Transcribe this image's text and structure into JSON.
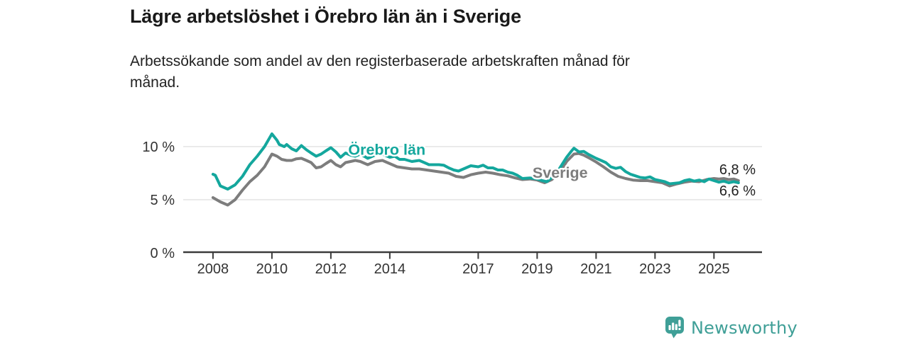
{
  "header": {
    "title": "Lägre arbetslöshet i Örebro län än i Sverige",
    "subtitle": "Arbetssökande som andel av den registerbaserade arbetskraften månad för\nmånad."
  },
  "footer": {
    "brand": "Newsworthy",
    "logo_icon": "bar-chart-speech-bubble"
  },
  "colors": {
    "orebro": "#14a79d",
    "sverige": "#7d7d7d",
    "grid": "#e0e0e0",
    "axis": "#3b3b3b",
    "tick_text": "#333333",
    "annotation_text": "#222222",
    "logo": "#3f9f97",
    "title_text": "#191919"
  },
  "chart_data": {
    "type": "line",
    "title": "Lägre arbetslöshet i Örebro län än i Sverige",
    "subtitle": "Arbetssökande som andel av den registerbaserade arbetskraften månad för månad.",
    "x_unit": "year_decimal",
    "y_unit": "percent",
    "xlim": [
      2006.99,
      2026.63
    ],
    "ylim": [
      0,
      12.13
    ],
    "grid": true,
    "legend_position": "inline-labels",
    "y_ticks": [
      {
        "value": 0,
        "label": "0 %"
      },
      {
        "value": 5,
        "label": "5 %"
      },
      {
        "value": 10,
        "label": "10 %"
      }
    ],
    "x_ticks": [
      {
        "value": 2008,
        "label": "2008"
      },
      {
        "value": 2010,
        "label": "2010"
      },
      {
        "value": 2012,
        "label": "2012"
      },
      {
        "value": 2014,
        "label": "2014"
      },
      {
        "value": 2017,
        "label": "2017"
      },
      {
        "value": 2019,
        "label": "2019"
      },
      {
        "value": 2021,
        "label": "2021"
      },
      {
        "value": 2023,
        "label": "2023"
      },
      {
        "value": 2025,
        "label": "2025"
      }
    ],
    "series": [
      {
        "name": "Sverige",
        "color": "#7d7d7d",
        "label": {
          "text": "Sverige",
          "x": 2019.78,
          "y": 7.6
        },
        "end_label": {
          "text": "6,8 %",
          "x": 2025.18,
          "y": 7.87
        },
        "points": [
          [
            2008.0,
            5.2
          ],
          [
            2008.25,
            4.8
          ],
          [
            2008.5,
            4.5
          ],
          [
            2008.75,
            5.0
          ],
          [
            2009.0,
            5.9
          ],
          [
            2009.25,
            6.7
          ],
          [
            2009.5,
            7.3
          ],
          [
            2009.75,
            8.1
          ],
          [
            2010.0,
            9.3
          ],
          [
            2010.17,
            9.1
          ],
          [
            2010.33,
            8.8
          ],
          [
            2010.5,
            8.7
          ],
          [
            2010.67,
            8.7
          ],
          [
            2010.83,
            8.85
          ],
          [
            2011.0,
            8.9
          ],
          [
            2011.17,
            8.7
          ],
          [
            2011.33,
            8.5
          ],
          [
            2011.5,
            8.0
          ],
          [
            2011.67,
            8.1
          ],
          [
            2011.83,
            8.4
          ],
          [
            2012.0,
            8.7
          ],
          [
            2012.17,
            8.3
          ],
          [
            2012.33,
            8.1
          ],
          [
            2012.5,
            8.5
          ],
          [
            2012.67,
            8.6
          ],
          [
            2012.83,
            8.7
          ],
          [
            2013.0,
            8.6
          ],
          [
            2013.25,
            8.3
          ],
          [
            2013.5,
            8.6
          ],
          [
            2013.75,
            8.7
          ],
          [
            2014.0,
            8.4
          ],
          [
            2014.25,
            8.1
          ],
          [
            2014.5,
            8.0
          ],
          [
            2014.75,
            7.9
          ],
          [
            2015.0,
            7.9
          ],
          [
            2015.25,
            7.8
          ],
          [
            2015.5,
            7.7
          ],
          [
            2015.75,
            7.6
          ],
          [
            2016.0,
            7.5
          ],
          [
            2016.25,
            7.2
          ],
          [
            2016.5,
            7.1
          ],
          [
            2016.75,
            7.35
          ],
          [
            2017.0,
            7.5
          ],
          [
            2017.25,
            7.6
          ],
          [
            2017.5,
            7.5
          ],
          [
            2017.75,
            7.35
          ],
          [
            2018.0,
            7.25
          ],
          [
            2018.25,
            7.05
          ],
          [
            2018.5,
            6.9
          ],
          [
            2018.75,
            6.95
          ],
          [
            2019.0,
            6.85
          ],
          [
            2019.25,
            6.6
          ],
          [
            2019.5,
            6.9
          ],
          [
            2019.75,
            7.5
          ],
          [
            2020.0,
            8.6
          ],
          [
            2020.25,
            9.3
          ],
          [
            2020.42,
            9.35
          ],
          [
            2020.58,
            9.2
          ],
          [
            2020.75,
            8.95
          ],
          [
            2021.0,
            8.55
          ],
          [
            2021.25,
            8.1
          ],
          [
            2021.5,
            7.6
          ],
          [
            2021.75,
            7.2
          ],
          [
            2022.0,
            7.0
          ],
          [
            2022.25,
            6.85
          ],
          [
            2022.5,
            6.8
          ],
          [
            2022.75,
            6.8
          ],
          [
            2023.0,
            6.7
          ],
          [
            2023.25,
            6.6
          ],
          [
            2023.5,
            6.3
          ],
          [
            2023.75,
            6.5
          ],
          [
            2024.0,
            6.65
          ],
          [
            2024.25,
            6.75
          ],
          [
            2024.5,
            6.7
          ],
          [
            2024.75,
            6.9
          ],
          [
            2025.0,
            7.0
          ],
          [
            2025.17,
            6.95
          ],
          [
            2025.33,
            7.0
          ],
          [
            2025.5,
            6.9
          ],
          [
            2025.67,
            6.95
          ],
          [
            2025.83,
            6.8
          ]
        ]
      },
      {
        "name": "Örebro län",
        "color": "#14a79d",
        "label": {
          "text": "Örebro län",
          "x": 2013.9,
          "y": 9.77
        },
        "end_label": {
          "text": "6,6 %",
          "x": 2025.18,
          "y": 5.87
        },
        "points": [
          [
            2008.0,
            7.4
          ],
          [
            2008.08,
            7.3
          ],
          [
            2008.25,
            6.3
          ],
          [
            2008.5,
            6.0
          ],
          [
            2008.75,
            6.4
          ],
          [
            2009.0,
            7.2
          ],
          [
            2009.25,
            8.3
          ],
          [
            2009.5,
            9.1
          ],
          [
            2009.75,
            10.0
          ],
          [
            2010.0,
            11.2
          ],
          [
            2010.17,
            10.6
          ],
          [
            2010.25,
            10.2
          ],
          [
            2010.42,
            10.0
          ],
          [
            2010.5,
            10.2
          ],
          [
            2010.67,
            9.8
          ],
          [
            2010.83,
            9.6
          ],
          [
            2011.0,
            10.1
          ],
          [
            2011.17,
            9.7
          ],
          [
            2011.33,
            9.4
          ],
          [
            2011.5,
            9.1
          ],
          [
            2011.67,
            9.3
          ],
          [
            2011.83,
            9.6
          ],
          [
            2012.0,
            9.9
          ],
          [
            2012.17,
            9.5
          ],
          [
            2012.33,
            9.0
          ],
          [
            2012.5,
            9.4
          ],
          [
            2012.67,
            9.2
          ],
          [
            2012.83,
            9.1
          ],
          [
            2013.0,
            9.3
          ],
          [
            2013.25,
            8.9
          ],
          [
            2013.5,
            9.2
          ],
          [
            2013.75,
            9.3
          ],
          [
            2014.0,
            9.0
          ],
          [
            2014.17,
            9.1
          ],
          [
            2014.33,
            8.8
          ],
          [
            2014.5,
            8.8
          ],
          [
            2014.75,
            8.6
          ],
          [
            2015.0,
            8.7
          ],
          [
            2015.17,
            8.5
          ],
          [
            2015.33,
            8.3
          ],
          [
            2015.5,
            8.3
          ],
          [
            2015.67,
            8.3
          ],
          [
            2015.83,
            8.25
          ],
          [
            2016.0,
            8.0
          ],
          [
            2016.17,
            7.8
          ],
          [
            2016.33,
            7.7
          ],
          [
            2016.5,
            7.9
          ],
          [
            2016.75,
            8.2
          ],
          [
            2017.0,
            8.1
          ],
          [
            2017.17,
            8.25
          ],
          [
            2017.33,
            8.0
          ],
          [
            2017.5,
            8.0
          ],
          [
            2017.67,
            7.8
          ],
          [
            2017.83,
            7.8
          ],
          [
            2018.0,
            7.6
          ],
          [
            2018.17,
            7.5
          ],
          [
            2018.33,
            7.3
          ],
          [
            2018.5,
            7.0
          ],
          [
            2018.75,
            7.05
          ],
          [
            2019.0,
            6.95
          ],
          [
            2019.17,
            6.8
          ],
          [
            2019.33,
            6.7
          ],
          [
            2019.5,
            7.1
          ],
          [
            2019.75,
            7.9
          ],
          [
            2020.0,
            9.0
          ],
          [
            2020.17,
            9.6
          ],
          [
            2020.25,
            9.85
          ],
          [
            2020.42,
            9.5
          ],
          [
            2020.58,
            9.55
          ],
          [
            2020.75,
            9.25
          ],
          [
            2021.0,
            8.9
          ],
          [
            2021.17,
            8.7
          ],
          [
            2021.33,
            8.5
          ],
          [
            2021.5,
            8.1
          ],
          [
            2021.67,
            7.95
          ],
          [
            2021.83,
            8.05
          ],
          [
            2022.0,
            7.65
          ],
          [
            2022.17,
            7.4
          ],
          [
            2022.33,
            7.25
          ],
          [
            2022.5,
            7.1
          ],
          [
            2022.67,
            7.05
          ],
          [
            2022.83,
            7.15
          ],
          [
            2023.0,
            6.9
          ],
          [
            2023.17,
            6.8
          ],
          [
            2023.33,
            6.7
          ],
          [
            2023.5,
            6.5
          ],
          [
            2023.67,
            6.55
          ],
          [
            2023.83,
            6.6
          ],
          [
            2024.0,
            6.8
          ],
          [
            2024.17,
            6.9
          ],
          [
            2024.33,
            6.75
          ],
          [
            2024.5,
            6.85
          ],
          [
            2024.67,
            6.7
          ],
          [
            2024.83,
            6.95
          ],
          [
            2025.0,
            6.8
          ],
          [
            2025.17,
            6.65
          ],
          [
            2025.33,
            6.75
          ],
          [
            2025.5,
            6.6
          ],
          [
            2025.67,
            6.7
          ],
          [
            2025.83,
            6.6
          ]
        ]
      }
    ]
  }
}
